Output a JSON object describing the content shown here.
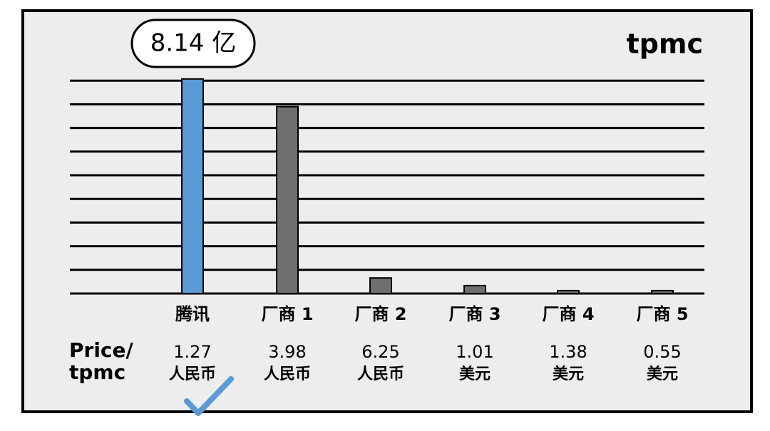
{
  "chart_data": {
    "type": "bar",
    "title": "tpmc",
    "categories": [
      "腾讯",
      "厂商 1",
      "厂商 2",
      "厂商 3",
      "厂商 4",
      "厂商 5"
    ],
    "values": [
      8.14,
      7.09,
      0.59,
      0.3,
      0.11,
      0.11
    ],
    "value_labels": [
      "8.14 亿",
      null,
      null,
      null,
      null,
      null
    ],
    "colors": [
      "#5b9bd5",
      "#6f6f6f",
      "#6f6f6f",
      "#6f6f6f",
      "#6f6f6f",
      "#6f6f6f"
    ],
    "ylim": [
      0,
      9
    ],
    "grid": true,
    "price_label": [
      "Price/",
      "tpmc"
    ],
    "prices": [
      {
        "value": 1.27,
        "unit": "人民币"
      },
      {
        "value": 3.98,
        "unit": "人民币"
      },
      {
        "value": 6.25,
        "unit": "人民币"
      },
      {
        "value": 1.01,
        "unit": "美元"
      },
      {
        "value": 1.38,
        "unit": "美元"
      },
      {
        "value": 0.55,
        "unit": "美元"
      }
    ]
  }
}
